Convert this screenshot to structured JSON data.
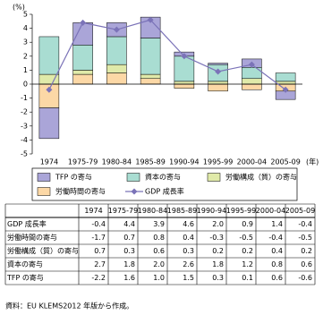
{
  "chart_data": {
    "type": "bar",
    "y_unit": "(%)",
    "x_unit": "(年)",
    "categories": [
      "1974",
      "1975-79",
      "1980-84",
      "1985-89",
      "1990-94",
      "1995-99",
      "2000-04",
      "2005-09"
    ],
    "series": [
      {
        "name": "TFP の寄与",
        "type": "bar",
        "color": "#aaa5d8",
        "values": [
          -2.2,
          1.6,
          1.0,
          1.5,
          0.3,
          0.1,
          0.6,
          -0.6
        ],
        "value_labels": [
          "-2.2",
          "1.6",
          "1.0",
          "1.5",
          "0.3",
          "0.1",
          "0.6",
          "-0.6"
        ]
      },
      {
        "name": "資本の寄与",
        "type": "bar",
        "color": "#a9ddd2",
        "values": [
          2.7,
          1.8,
          2.0,
          2.6,
          1.8,
          1.2,
          0.8,
          0.6
        ],
        "value_labels": [
          "2.7",
          "1.8",
          "2.0",
          "2.6",
          "1.8",
          "1.2",
          "0.8",
          "0.6"
        ]
      },
      {
        "name": "労働構成（質）の寄与",
        "type": "bar",
        "color": "#e0eaa9",
        "values": [
          0.7,
          0.3,
          0.6,
          0.3,
          0.2,
          0.2,
          0.4,
          0.2
        ],
        "value_labels": [
          "0.7",
          "0.3",
          "0.6",
          "0.3",
          "0.2",
          "0.2",
          "0.4",
          "0.2"
        ]
      },
      {
        "name": "労働時間の寄与",
        "type": "bar",
        "color": "#fcd8a6",
        "values": [
          -1.7,
          0.7,
          0.8,
          0.4,
          -0.3,
          -0.5,
          -0.4,
          -0.5
        ],
        "value_labels": [
          "-1.7",
          "0.7",
          "0.8",
          "0.4",
          "-0.3",
          "-0.5",
          "-0.4",
          "-0.5"
        ]
      },
      {
        "name": "GDP 成長率",
        "type": "line",
        "color": "#7b73b8",
        "values": [
          -0.4,
          4.4,
          3.9,
          4.6,
          2.0,
          0.9,
          1.4,
          -0.4
        ],
        "value_labels": [
          "-0.4",
          "4.4",
          "3.9",
          "4.6",
          "2.0",
          "0.9",
          "1.4",
          "-0.4"
        ]
      }
    ],
    "ylim": [
      -5,
      5
    ],
    "yticks": [
      -5,
      -4,
      -3,
      -2,
      -1,
      0,
      1,
      2,
      3,
      4,
      5
    ],
    "grid": false
  },
  "source": "資料：EU KLEMS2012 年版から作成。"
}
